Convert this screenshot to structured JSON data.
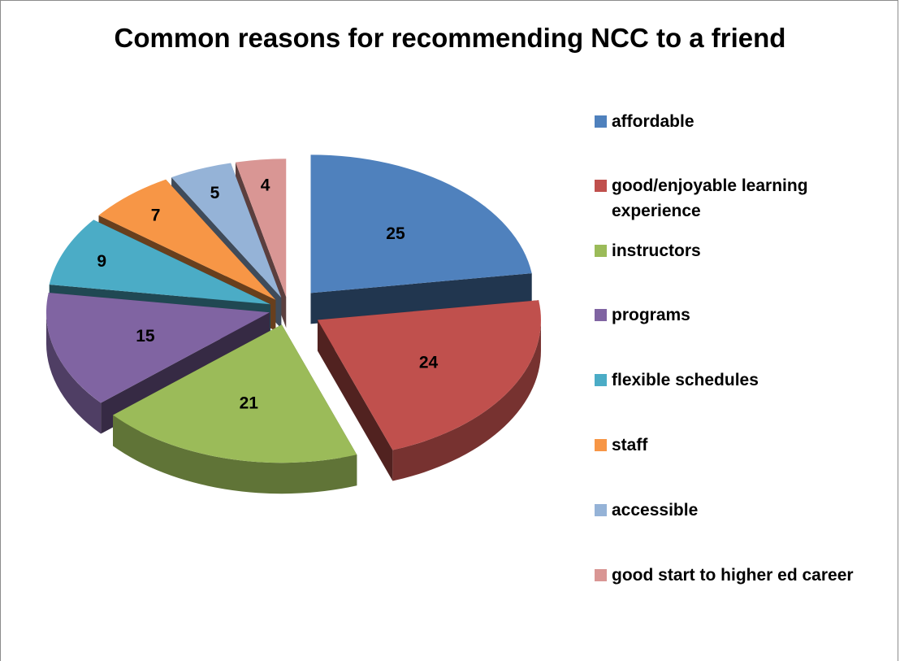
{
  "chart_data": {
    "type": "pie",
    "title": "Common reasons for recommending NCC to a friend",
    "categories": [
      "affordable",
      "good/enjoyable learning experience",
      "instructors",
      "programs",
      "flexible schedules",
      "staff",
      "accessible",
      "good start to higher ed career"
    ],
    "values": [
      25,
      24,
      21,
      15,
      9,
      7,
      5,
      4
    ],
    "colors": [
      "#4F81BD",
      "#C0504D",
      "#9BBB59",
      "#8064A2",
      "#4BACC6",
      "#F79646",
      "#95B3D7",
      "#D99694"
    ],
    "data_labels": [
      "25",
      "24",
      "21",
      "15",
      "9",
      "7",
      "5",
      "4"
    ],
    "style": "3d-exploded",
    "legend_position": "right"
  }
}
